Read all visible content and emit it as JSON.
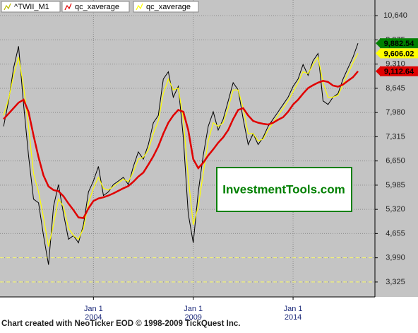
{
  "chart_data": {
    "type": "line",
    "annotation": "InvestmentTools.com",
    "footer": "Chart created with NeoTicker EOD © 1998-2009 TickQuest Inc.",
    "xlim": [
      1999.32,
      2018.1
    ],
    "ylim": [
      2915,
      11070
    ],
    "xticks": [
      {
        "value": 2004,
        "label": [
          "Jan 1",
          "2004"
        ]
      },
      {
        "value": 2009,
        "label": [
          "Jan 1",
          "2009"
        ]
      },
      {
        "value": 2014,
        "label": [
          "Jan 1",
          "2014"
        ]
      }
    ],
    "yticks": [
      {
        "value": 10640,
        "label": "10,640"
      },
      {
        "value": 9975,
        "label": "9,975"
      },
      {
        "value": 9310,
        "label": "9,310"
      },
      {
        "value": 8645,
        "label": "8,645"
      },
      {
        "value": 7980,
        "label": "7,980"
      },
      {
        "value": 7315,
        "label": "7,315"
      },
      {
        "value": 6650,
        "label": "6,650"
      },
      {
        "value": 5985,
        "label": "5,985"
      },
      {
        "value": 5320,
        "label": "5,320"
      },
      {
        "value": 4655,
        "label": "4,655"
      },
      {
        "value": 3990,
        "label": "3,990"
      },
      {
        "value": 3325,
        "label": "3,325"
      }
    ],
    "grid": true,
    "reference_lines": {
      "color": "#ffff66",
      "values": [
        3990,
        3325
      ]
    },
    "x": [
      1999.5,
      1999.75,
      2000,
      2000.25,
      2000.5,
      2000.75,
      2001,
      2001.25,
      2001.5,
      2001.75,
      2002,
      2002.25,
      2002.5,
      2002.75,
      2003,
      2003.25,
      2003.5,
      2003.75,
      2004,
      2004.25,
      2004.5,
      2004.75,
      2005,
      2005.25,
      2005.5,
      2005.75,
      2006,
      2006.25,
      2006.5,
      2006.75,
      2007,
      2007.25,
      2007.5,
      2007.75,
      2008,
      2008.25,
      2008.5,
      2008.75,
      2009,
      2009.25,
      2009.5,
      2009.75,
      2010,
      2010.25,
      2010.5,
      2010.75,
      2011,
      2011.25,
      2011.5,
      2011.75,
      2012,
      2012.25,
      2012.5,
      2012.75,
      2013,
      2013.25,
      2013.5,
      2013.75,
      2014,
      2014.25,
      2014.5,
      2014.75,
      2015,
      2015.25,
      2015.5,
      2015.75,
      2016,
      2016.25,
      2016.5,
      2016.75,
      2017,
      2017.25
    ],
    "series": [
      {
        "name": "^TWII_M1",
        "color": "#000000",
        "width": 1,
        "label_color": "#008000",
        "last_label": {
          "value": 9882.54,
          "label": "9,882.54"
        },
        "values": [
          7600,
          8300,
          9200,
          9800,
          8200,
          6800,
          5600,
          5500,
          4600,
          3800,
          5400,
          6000,
          5200,
          4500,
          4600,
          4400,
          4900,
          5800,
          6100,
          6500,
          5700,
          5800,
          6000,
          6100,
          6200,
          6000,
          6500,
          6900,
          6700,
          7100,
          7700,
          7900,
          8900,
          9100,
          8400,
          8700,
          7300,
          5200,
          4400,
          5800,
          6800,
          7600,
          8000,
          7500,
          7800,
          8300,
          8800,
          8600,
          7800,
          7100,
          7400,
          7100,
          7300,
          7600,
          7800,
          8000,
          8200,
          8400,
          8700,
          8900,
          9300,
          9000,
          9400,
          9600,
          8300,
          8200,
          8400,
          8500,
          8900,
          9200,
          9500,
          9882.54
        ]
      },
      {
        "name": "qc_xaverage",
        "color": "#e00000",
        "width": 2.5,
        "label_color": "#e00000",
        "last_label": {
          "value": 9112.64,
          "label": "9,112.64"
        },
        "values": [
          7800,
          7950,
          8100,
          8250,
          8330,
          8000,
          7350,
          6750,
          6250,
          5950,
          5850,
          5820,
          5680,
          5480,
          5300,
          5100,
          5080,
          5350,
          5550,
          5620,
          5650,
          5700,
          5760,
          5830,
          5900,
          5960,
          6080,
          6220,
          6330,
          6550,
          6780,
          7050,
          7400,
          7700,
          7900,
          8050,
          8000,
          7500,
          6700,
          6450,
          6600,
          6800,
          6970,
          7150,
          7300,
          7500,
          7800,
          8050,
          8100,
          7900,
          7750,
          7700,
          7670,
          7650,
          7700,
          7780,
          7850,
          8000,
          8200,
          8330,
          8500,
          8650,
          8730,
          8800,
          8850,
          8820,
          8720,
          8690,
          8750,
          8850,
          8950,
          9112.64
        ]
      },
      {
        "name": "qc_xaverage",
        "color": "#ffff00",
        "width": 1.2,
        "label_color": "#ffff00",
        "last_label": {
          "value": 9606.02,
          "label": "9,606.02"
        },
        "values": [
          7900,
          8350,
          9000,
          9500,
          8700,
          7600,
          6300,
          5800,
          5100,
          4300,
          4900,
          5600,
          5400,
          4800,
          4600,
          4500,
          4800,
          5500,
          5900,
          6200,
          5900,
          5850,
          5950,
          6050,
          6150,
          6080,
          6350,
          6700,
          6750,
          6950,
          7400,
          7750,
          8500,
          8900,
          8600,
          8650,
          7800,
          6200,
          4900,
          5400,
          6300,
          7200,
          7700,
          7600,
          7700,
          8100,
          8600,
          8600,
          8100,
          7400,
          7400,
          7200,
          7250,
          7500,
          7700,
          7900,
          8100,
          8300,
          8550,
          8800,
          9100,
          9050,
          9300,
          9500,
          8800,
          8400,
          8400,
          8450,
          8750,
          9050,
          9350,
          9606.02
        ]
      }
    ]
  }
}
